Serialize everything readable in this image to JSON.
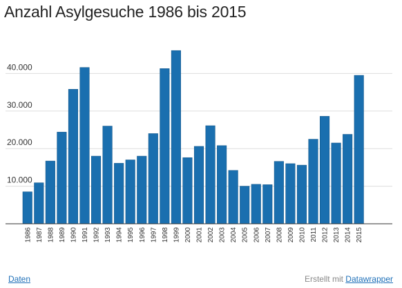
{
  "title": "Anzahl Asylgesuche 1986 bis 2015",
  "footer": {
    "data_link": "Daten",
    "credit_prefix": "Erstellt mit",
    "credit_link": "Datawrapper"
  },
  "colors": {
    "bar": "#1a6faf",
    "bar_stroke": "#15598d",
    "grid": "#dddddd",
    "axis": "#333333"
  },
  "chart_data": {
    "type": "bar",
    "title": "Anzahl Asylgesuche 1986 bis 2015",
    "xlabel": "",
    "ylabel": "",
    "ylim": [
      0,
      50000
    ],
    "grid": true,
    "legend": "none",
    "ytick_values": [
      10000,
      20000,
      30000,
      40000
    ],
    "ytick_labels": [
      "10.000",
      "20.000",
      "30.000",
      "40.000"
    ],
    "categories": [
      "1986",
      "1987",
      "1988",
      "1989",
      "1990",
      "1991",
      "1992",
      "1993",
      "1994",
      "1995",
      "1996",
      "1997",
      "1998",
      "1999",
      "2000",
      "2001",
      "2002",
      "2003",
      "2004",
      "2005",
      "2006",
      "2007",
      "2008",
      "2009",
      "2010",
      "2011",
      "2012",
      "2013",
      "2014",
      "2015"
    ],
    "values": [
      8500,
      10900,
      16700,
      24400,
      35800,
      41600,
      18000,
      26000,
      16100,
      17000,
      18000,
      24000,
      41300,
      46100,
      17600,
      20600,
      26100,
      20800,
      14200,
      10000,
      10500,
      10400,
      16600,
      16000,
      15600,
      22500,
      28600,
      21500,
      23800,
      39500
    ]
  }
}
